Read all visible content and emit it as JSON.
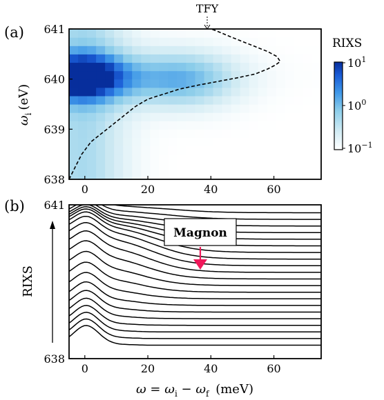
{
  "chart_data": [
    {
      "panel_label": "(a)",
      "type": "heatmap",
      "xlim": [
        -5,
        75
      ],
      "ylim": [
        638,
        641
      ],
      "x_ticks": [
        "0",
        "20",
        "40",
        "60"
      ],
      "y_ticks": [
        "638",
        "639",
        "640",
        "641"
      ],
      "ylabel_main": "ω",
      "ylabel_sub": "i",
      "ylabel_unit": "(eV)",
      "colorbar": {
        "title": "RIXS",
        "scale": "log",
        "ticks": [
          {
            "base": "10",
            "exp": "1"
          },
          {
            "base": "10",
            "exp": "0"
          },
          {
            "base": "10",
            "exp": "−1"
          }
        ],
        "log_range": [
          -1,
          1
        ]
      },
      "colormap": [
        "#ffffff",
        "#cfeaf3",
        "#8ccdea",
        "#3f98e8",
        "#1a5cd6",
        "#072e9c"
      ],
      "tfy_label": "TFY",
      "tfy_curve": {
        "x": [
          -5,
          -3,
          -1,
          2,
          6,
          9,
          12,
          16,
          20,
          25,
          30,
          36,
          42,
          48,
          54,
          58,
          60.5,
          62,
          61,
          58,
          54,
          50,
          46,
          43,
          41,
          40
        ],
        "y": [
          638.0,
          638.25,
          638.5,
          638.75,
          638.95,
          639.1,
          639.25,
          639.45,
          639.6,
          639.7,
          639.8,
          639.88,
          639.95,
          640.02,
          640.1,
          640.2,
          640.28,
          640.35,
          640.45,
          640.55,
          640.65,
          640.75,
          640.85,
          640.93,
          640.98,
          641.0
        ]
      }
    },
    {
      "panel_label": "(b)",
      "type": "line",
      "xlim": [
        -5,
        75
      ],
      "ylim": [
        638,
        641
      ],
      "x_ticks": [
        "0",
        "20",
        "40",
        "60"
      ],
      "y_ticks": [
        "638",
        "641"
      ],
      "xlabel_omega": "ω",
      "xlabel_eq": "=",
      "xlabel_wi": "ω",
      "xlabel_wi_sub": "i",
      "xlabel_minus": "−",
      "xlabel_wf": "ω",
      "xlabel_wf_sub": "f",
      "xlabel_unit": "(meV)",
      "ylabel": "RIXS",
      "annotation": "Magnon",
      "annotation_color": "#f0185a",
      "series_count": 21
    }
  ]
}
